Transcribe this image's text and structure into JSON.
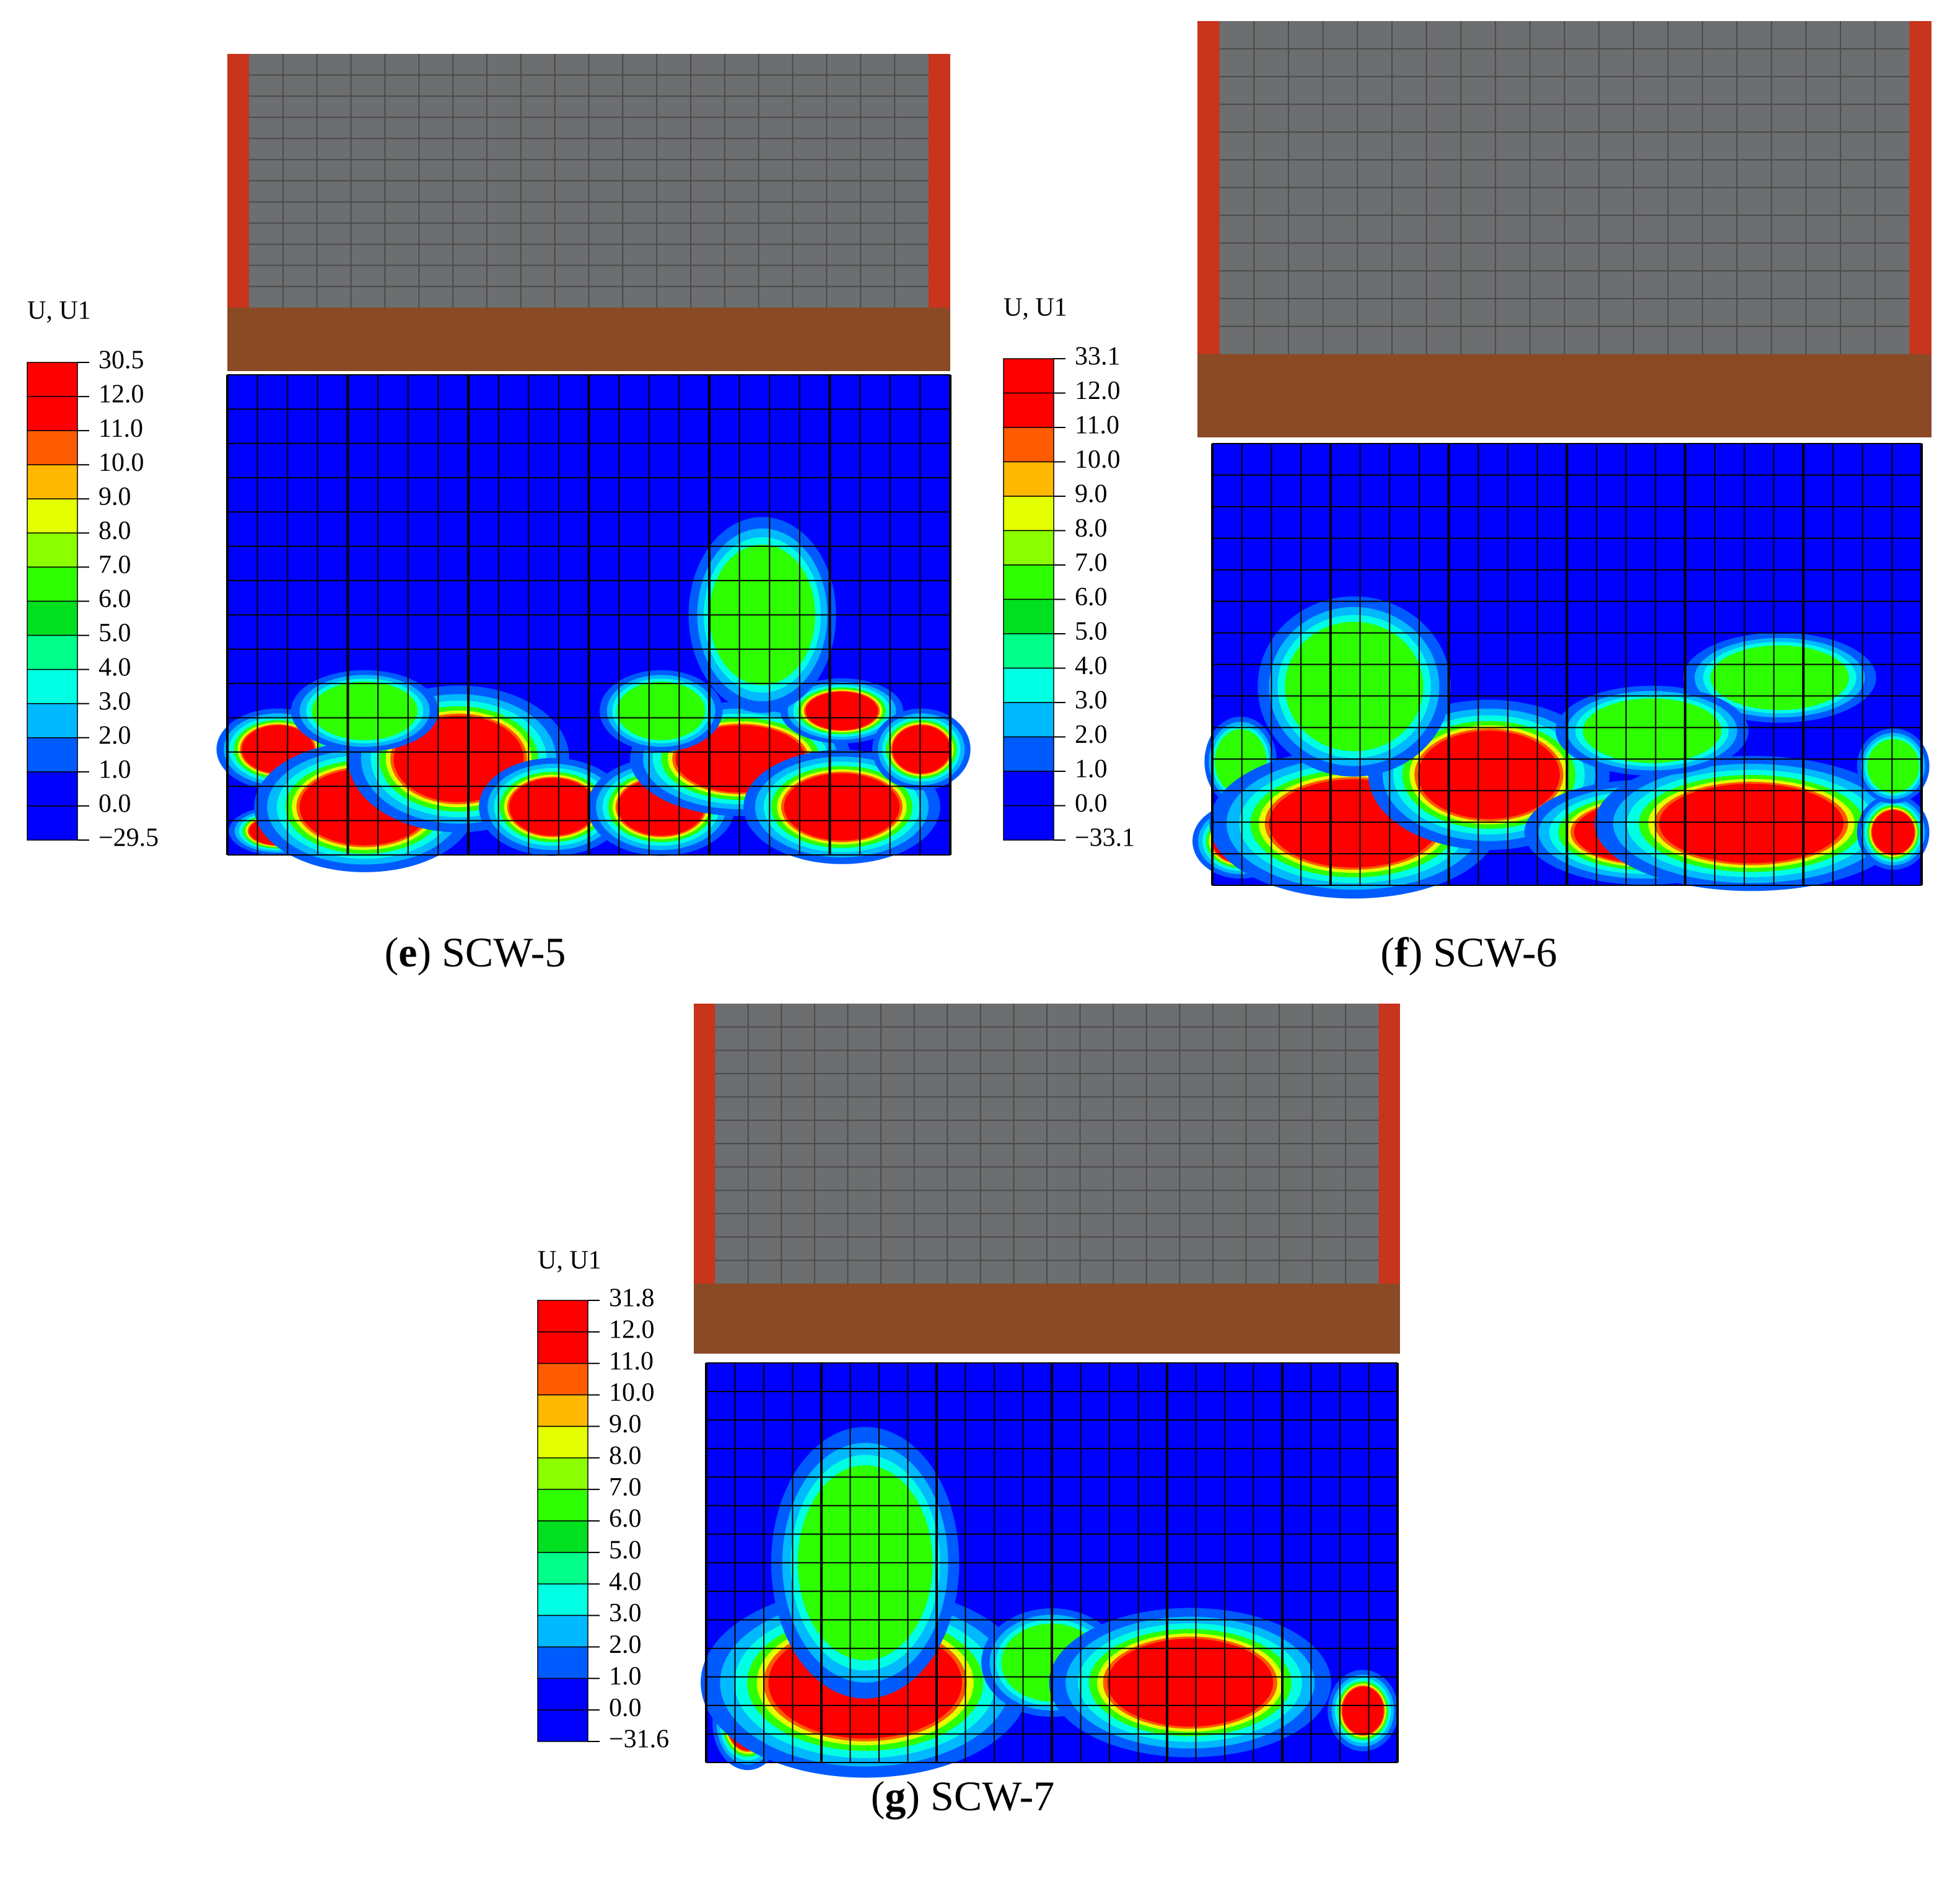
{
  "panels": [
    {
      "legend_title": "U, U1",
      "legend_labels": [
        "30.5",
        "12.0",
        "11.0",
        "10.0",
        "9.0",
        "8.0",
        "7.0",
        "6.0",
        "5.0",
        "4.0",
        "3.0",
        "2.0",
        "1.0",
        "0.0",
        "−29.5"
      ],
      "caption": [
        "(",
        "e",
        ") SCW-5"
      ]
    },
    {
      "legend_title": "U, U1",
      "legend_labels": [
        "33.1",
        "12.0",
        "11.0",
        "10.0",
        "9.0",
        "8.0",
        "7.0",
        "6.0",
        "5.0",
        "4.0",
        "3.0",
        "2.0",
        "1.0",
        "0.0",
        "−33.1"
      ],
      "caption": [
        "(",
        "f",
        ") SCW-6"
      ]
    },
    {
      "legend_title": "U, U1",
      "legend_labels": [
        "31.8",
        "12.0",
        "11.0",
        "10.0",
        "9.0",
        "8.0",
        "7.0",
        "6.0",
        "5.0",
        "4.0",
        "3.0",
        "2.0",
        "1.0",
        "0.0",
        "−31.6"
      ],
      "caption": [
        "(",
        "g",
        ") SCW-7"
      ]
    }
  ]
}
